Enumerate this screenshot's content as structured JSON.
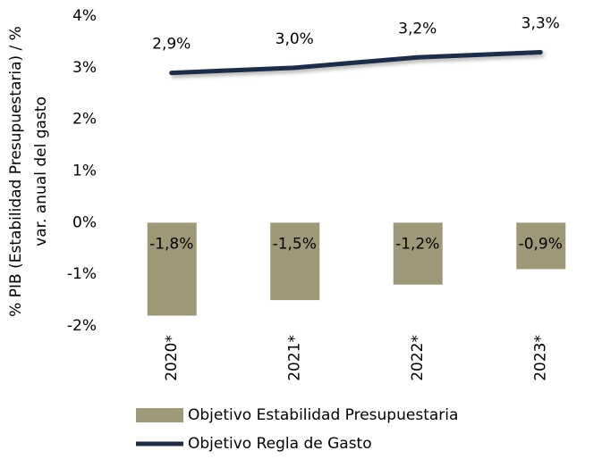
{
  "chart_data": {
    "type": "bar-line",
    "y_label": [
      "% PIB (Estabilidad Presupuestaria) / %",
      "var. anual del gasto"
    ],
    "categories": [
      "2020*",
      "2021*",
      "2022*",
      "2023*"
    ],
    "series": [
      {
        "name": "Objetivo Estabilidad Presupuestaria",
        "type": "bar",
        "color": "#9f9878",
        "values": [
          -1.8,
          -1.5,
          -1.2,
          -0.9
        ],
        "value_labels": [
          "-1,8%",
          "-1,5%",
          "-1,2%",
          "-0,9%"
        ]
      },
      {
        "name": "Objetivo Regla de Gasto",
        "type": "line",
        "color": "#1f2d46",
        "values": [
          2.9,
          3.0,
          3.2,
          3.3
        ],
        "value_labels": [
          "2,9%",
          "3,0%",
          "3,2%",
          "3,3%"
        ]
      }
    ],
    "ylim": [
      -2,
      4
    ],
    "yticks": [
      {
        "value": -2,
        "label": "-2%"
      },
      {
        "value": -1,
        "label": "-1%"
      },
      {
        "value": 0,
        "label": "0%"
      },
      {
        "value": 1,
        "label": "1%"
      },
      {
        "value": 2,
        "label": "2%"
      },
      {
        "value": 3,
        "label": "3%"
      },
      {
        "value": 4,
        "label": "4%"
      }
    ],
    "grid": false
  }
}
